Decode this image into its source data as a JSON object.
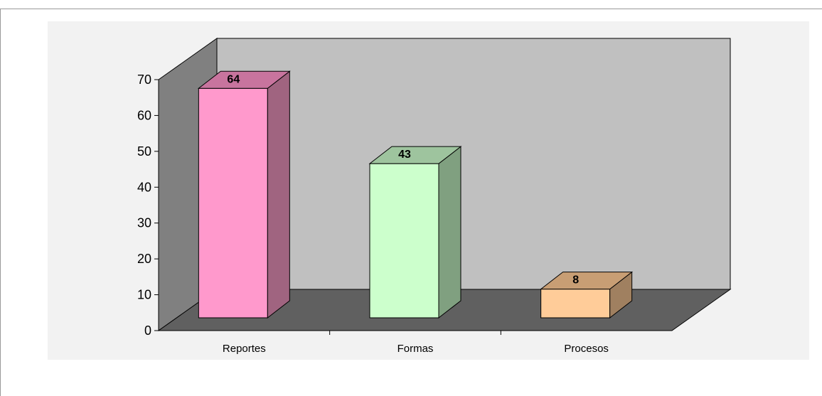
{
  "chart_data": {
    "type": "bar",
    "categories": [
      "Reportes",
      "Formas",
      "Procesos"
    ],
    "values": [
      64,
      43,
      8
    ],
    "data_labels": [
      "64",
      "43",
      "8"
    ],
    "y_ticks": [
      "0",
      "10",
      "20",
      "30",
      "40",
      "50",
      "60",
      "70"
    ],
    "ylim": [
      0,
      70
    ],
    "title": "",
    "xlabel": "",
    "ylabel": "",
    "grid": false,
    "legend": "none",
    "style": "3d-column",
    "colors": {
      "bar_fronts": [
        "#ff99cc",
        "#ccffcc",
        "#ffcc99"
      ],
      "bar_sides": [
        "#a06480",
        "#80a080",
        "#a08060"
      ],
      "bar_tops": [
        "#c8749e",
        "#9ec49e",
        "#c89e74"
      ],
      "back_wall": "#c0c0c0",
      "side_wall": "#808080",
      "floor": "#606060",
      "plot_area": "#f2f2f2"
    }
  }
}
